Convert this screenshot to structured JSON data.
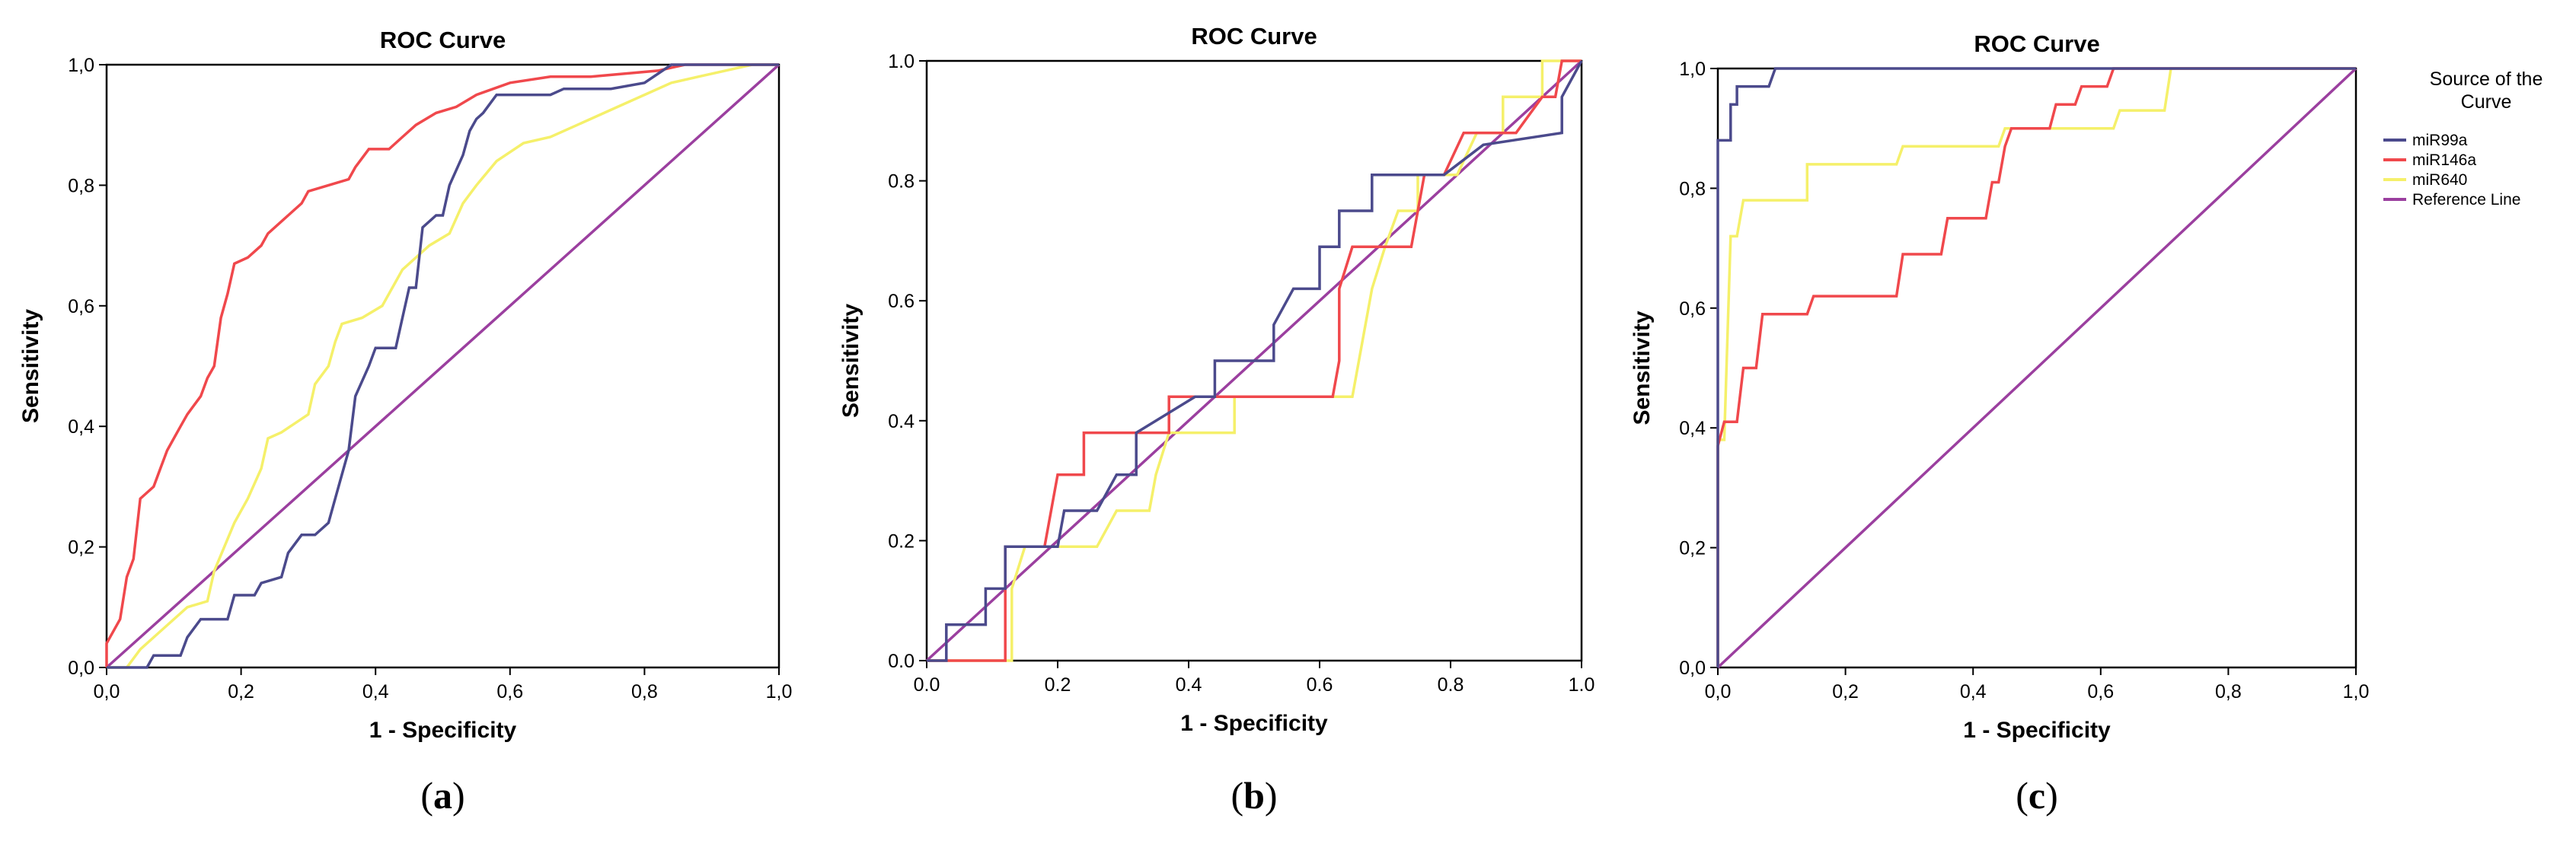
{
  "colors": {
    "miR99a": "#4b4a8c",
    "miR146a": "#f0484c",
    "miR640": "#f5f06a",
    "reference": "#9b3f9f",
    "axis": "#000000"
  },
  "legend": {
    "title_line1": "Source of the",
    "title_line2": "Curve",
    "entries": [
      "miR99a",
      "miR146a",
      "miR640",
      "Reference Line"
    ],
    "placement": "right of panel c"
  },
  "chart_data": [
    {
      "type": "line",
      "title": "ROC Curve",
      "xlabel": "1 - Specificity",
      "ylabel": "Sensitivity",
      "panel_label": "a",
      "xlim": [
        0,
        1
      ],
      "ylim": [
        0,
        1
      ],
      "x_ticks": [
        "0,0",
        "0,2",
        "0,4",
        "0,6",
        "0,8",
        "1,0"
      ],
      "y_ticks": [
        "0,0",
        "0,2",
        "0,4",
        "0,6",
        "0,8",
        "1,0"
      ],
      "grid": false,
      "series": [
        {
          "name": "miR99a",
          "points": [
            [
              0,
              0
            ],
            [
              0.06,
              0
            ],
            [
              0.07,
              0.02
            ],
            [
              0.11,
              0.02
            ],
            [
              0.12,
              0.05
            ],
            [
              0.14,
              0.08
            ],
            [
              0.18,
              0.08
            ],
            [
              0.19,
              0.12
            ],
            [
              0.22,
              0.12
            ],
            [
              0.23,
              0.14
            ],
            [
              0.26,
              0.15
            ],
            [
              0.27,
              0.19
            ],
            [
              0.29,
              0.22
            ],
            [
              0.31,
              0.22
            ],
            [
              0.33,
              0.24
            ],
            [
              0.34,
              0.28
            ],
            [
              0.35,
              0.32
            ],
            [
              0.36,
              0.36
            ],
            [
              0.37,
              0.45
            ],
            [
              0.39,
              0.5
            ],
            [
              0.4,
              0.53
            ],
            [
              0.43,
              0.53
            ],
            [
              0.44,
              0.58
            ],
            [
              0.45,
              0.63
            ],
            [
              0.46,
              0.63
            ],
            [
              0.47,
              0.73
            ],
            [
              0.49,
              0.75
            ],
            [
              0.5,
              0.75
            ],
            [
              0.51,
              0.8
            ],
            [
              0.53,
              0.85
            ],
            [
              0.54,
              0.89
            ],
            [
              0.55,
              0.91
            ],
            [
              0.56,
              0.92
            ],
            [
              0.58,
              0.95
            ],
            [
              0.62,
              0.95
            ],
            [
              0.66,
              0.95
            ],
            [
              0.68,
              0.96
            ],
            [
              0.75,
              0.96
            ],
            [
              0.8,
              0.97
            ],
            [
              0.84,
              1.0
            ],
            [
              1,
              1
            ]
          ]
        },
        {
          "name": "miR146a",
          "points": [
            [
              0,
              0
            ],
            [
              0,
              0.04
            ],
            [
              0.02,
              0.08
            ],
            [
              0.03,
              0.15
            ],
            [
              0.04,
              0.18
            ],
            [
              0.05,
              0.28
            ],
            [
              0.07,
              0.3
            ],
            [
              0.08,
              0.33
            ],
            [
              0.09,
              0.36
            ],
            [
              0.1,
              0.38
            ],
            [
              0.11,
              0.4
            ],
            [
              0.12,
              0.42
            ],
            [
              0.14,
              0.45
            ],
            [
              0.15,
              0.48
            ],
            [
              0.16,
              0.5
            ],
            [
              0.17,
              0.58
            ],
            [
              0.18,
              0.62
            ],
            [
              0.19,
              0.67
            ],
            [
              0.21,
              0.68
            ],
            [
              0.23,
              0.7
            ],
            [
              0.24,
              0.72
            ],
            [
              0.26,
              0.74
            ],
            [
              0.29,
              0.77
            ],
            [
              0.3,
              0.79
            ],
            [
              0.33,
              0.8
            ],
            [
              0.36,
              0.81
            ],
            [
              0.37,
              0.83
            ],
            [
              0.39,
              0.86
            ],
            [
              0.42,
              0.86
            ],
            [
              0.44,
              0.88
            ],
            [
              0.46,
              0.9
            ],
            [
              0.49,
              0.92
            ],
            [
              0.52,
              0.93
            ],
            [
              0.55,
              0.95
            ],
            [
              0.6,
              0.97
            ],
            [
              0.66,
              0.98
            ],
            [
              0.72,
              0.98
            ],
            [
              0.82,
              0.99
            ],
            [
              0.86,
              1.0
            ],
            [
              1,
              1
            ]
          ]
        },
        {
          "name": "miR640",
          "points": [
            [
              0,
              0
            ],
            [
              0.03,
              0
            ],
            [
              0.05,
              0.03
            ],
            [
              0.08,
              0.06
            ],
            [
              0.12,
              0.1
            ],
            [
              0.15,
              0.11
            ],
            [
              0.16,
              0.16
            ],
            [
              0.19,
              0.24
            ],
            [
              0.21,
              0.28
            ],
            [
              0.23,
              0.33
            ],
            [
              0.24,
              0.38
            ],
            [
              0.26,
              0.39
            ],
            [
              0.3,
              0.42
            ],
            [
              0.31,
              0.47
            ],
            [
              0.33,
              0.5
            ],
            [
              0.34,
              0.54
            ],
            [
              0.35,
              0.57
            ],
            [
              0.38,
              0.58
            ],
            [
              0.41,
              0.6
            ],
            [
              0.43,
              0.64
            ],
            [
              0.44,
              0.66
            ],
            [
              0.48,
              0.7
            ],
            [
              0.51,
              0.72
            ],
            [
              0.53,
              0.77
            ],
            [
              0.55,
              0.8
            ],
            [
              0.58,
              0.84
            ],
            [
              0.62,
              0.87
            ],
            [
              0.66,
              0.88
            ],
            [
              0.7,
              0.9
            ],
            [
              0.76,
              0.93
            ],
            [
              0.8,
              0.95
            ],
            [
              0.84,
              0.97
            ],
            [
              0.88,
              0.98
            ],
            [
              0.92,
              0.99
            ],
            [
              0.96,
              1.0
            ],
            [
              1,
              1
            ]
          ]
        },
        {
          "name": "Reference Line",
          "points": [
            [
              0,
              0
            ],
            [
              1,
              1
            ]
          ]
        }
      ]
    },
    {
      "type": "line",
      "title": "ROC Curve",
      "xlabel": "1 - Specificity",
      "ylabel": "Sensitivity",
      "panel_label": "b",
      "xlim": [
        0,
        1
      ],
      "ylim": [
        0,
        1
      ],
      "x_ticks": [
        "0.0",
        "0.2",
        "0.4",
        "0.6",
        "0.8",
        "1.0"
      ],
      "y_ticks": [
        "0.0",
        "0.2",
        "0.4",
        "0.6",
        "0.8",
        "1.0"
      ],
      "grid": false,
      "series": [
        {
          "name": "miR99a",
          "points": [
            [
              0,
              0
            ],
            [
              0.03,
              0
            ],
            [
              0.03,
              0.06
            ],
            [
              0.09,
              0.06
            ],
            [
              0.09,
              0.12
            ],
            [
              0.12,
              0.12
            ],
            [
              0.12,
              0.19
            ],
            [
              0.2,
              0.19
            ],
            [
              0.21,
              0.25
            ],
            [
              0.26,
              0.25
            ],
            [
              0.29,
              0.31
            ],
            [
              0.32,
              0.31
            ],
            [
              0.32,
              0.38
            ],
            [
              0.41,
              0.44
            ],
            [
              0.44,
              0.44
            ],
            [
              0.44,
              0.5
            ],
            [
              0.53,
              0.5
            ],
            [
              0.53,
              0.56
            ],
            [
              0.56,
              0.62
            ],
            [
              0.6,
              0.62
            ],
            [
              0.6,
              0.69
            ],
            [
              0.63,
              0.69
            ],
            [
              0.63,
              0.75
            ],
            [
              0.68,
              0.75
            ],
            [
              0.68,
              0.81
            ],
            [
              0.79,
              0.81
            ],
            [
              0.85,
              0.86
            ],
            [
              0.97,
              0.88
            ],
            [
              0.97,
              0.94
            ],
            [
              1,
              1
            ]
          ]
        },
        {
          "name": "miR146a",
          "points": [
            [
              0,
              0
            ],
            [
              0.12,
              0
            ],
            [
              0.12,
              0.19
            ],
            [
              0.18,
              0.19
            ],
            [
              0.2,
              0.31
            ],
            [
              0.24,
              0.31
            ],
            [
              0.24,
              0.38
            ],
            [
              0.37,
              0.38
            ],
            [
              0.37,
              0.44
            ],
            [
              0.62,
              0.44
            ],
            [
              0.63,
              0.5
            ],
            [
              0.63,
              0.62
            ],
            [
              0.65,
              0.69
            ],
            [
              0.74,
              0.69
            ],
            [
              0.76,
              0.81
            ],
            [
              0.79,
              0.81
            ],
            [
              0.82,
              0.88
            ],
            [
              0.9,
              0.88
            ],
            [
              0.94,
              0.94
            ],
            [
              0.96,
              0.94
            ],
            [
              0.97,
              1.0
            ],
            [
              1,
              1
            ]
          ]
        },
        {
          "name": "miR640",
          "points": [
            [
              0,
              0
            ],
            [
              0.13,
              0
            ],
            [
              0.13,
              0.12
            ],
            [
              0.15,
              0.19
            ],
            [
              0.26,
              0.19
            ],
            [
              0.29,
              0.25
            ],
            [
              0.34,
              0.25
            ],
            [
              0.35,
              0.31
            ],
            [
              0.37,
              0.38
            ],
            [
              0.47,
              0.38
            ],
            [
              0.47,
              0.44
            ],
            [
              0.65,
              0.44
            ],
            [
              0.66,
              0.5
            ],
            [
              0.68,
              0.62
            ],
            [
              0.7,
              0.69
            ],
            [
              0.72,
              0.75
            ],
            [
              0.75,
              0.75
            ],
            [
              0.75,
              0.81
            ],
            [
              0.81,
              0.81
            ],
            [
              0.84,
              0.88
            ],
            [
              0.88,
              0.88
            ],
            [
              0.88,
              0.94
            ],
            [
              0.94,
              0.94
            ],
            [
              0.94,
              1.0
            ],
            [
              1,
              1
            ]
          ]
        },
        {
          "name": "Reference Line",
          "points": [
            [
              0,
              0
            ],
            [
              1,
              1
            ]
          ]
        }
      ]
    },
    {
      "type": "line",
      "title": "ROC Curve",
      "xlabel": "1 - Specificity",
      "ylabel": "Sensitivity",
      "panel_label": "c",
      "xlim": [
        0,
        1
      ],
      "ylim": [
        0,
        1
      ],
      "x_ticks": [
        "0,0",
        "0,2",
        "0,4",
        "0,6",
        "0,8",
        "1,0"
      ],
      "y_ticks": [
        "0,0",
        "0,2",
        "0,4",
        "0,6",
        "0,8",
        "1,0"
      ],
      "grid": false,
      "series": [
        {
          "name": "miR99a",
          "points": [
            [
              0,
              0
            ],
            [
              0,
              0.88
            ],
            [
              0.02,
              0.88
            ],
            [
              0.02,
              0.94
            ],
            [
              0.03,
              0.94
            ],
            [
              0.03,
              0.97
            ],
            [
              0.05,
              0.97
            ],
            [
              0.08,
              0.97
            ],
            [
              0.09,
              1.0
            ],
            [
              1,
              1
            ]
          ]
        },
        {
          "name": "miR146a",
          "points": [
            [
              0,
              0
            ],
            [
              0,
              0.37
            ],
            [
              0.01,
              0.41
            ],
            [
              0.03,
              0.41
            ],
            [
              0.04,
              0.5
            ],
            [
              0.06,
              0.5
            ],
            [
              0.07,
              0.59
            ],
            [
              0.14,
              0.59
            ],
            [
              0.15,
              0.62
            ],
            [
              0.28,
              0.62
            ],
            [
              0.29,
              0.69
            ],
            [
              0.35,
              0.69
            ],
            [
              0.36,
              0.75
            ],
            [
              0.42,
              0.75
            ],
            [
              0.43,
              0.81
            ],
            [
              0.44,
              0.81
            ],
            [
              0.45,
              0.87
            ],
            [
              0.46,
              0.9
            ],
            [
              0.52,
              0.9
            ],
            [
              0.53,
              0.94
            ],
            [
              0.56,
              0.94
            ],
            [
              0.57,
              0.97
            ],
            [
              0.61,
              0.97
            ],
            [
              0.62,
              1.0
            ],
            [
              1,
              1
            ]
          ]
        },
        {
          "name": "miR640",
          "points": [
            [
              0,
              0
            ],
            [
              0,
              0.38
            ],
            [
              0.01,
              0.38
            ],
            [
              0.02,
              0.72
            ],
            [
              0.03,
              0.72
            ],
            [
              0.04,
              0.78
            ],
            [
              0.14,
              0.78
            ],
            [
              0.14,
              0.84
            ],
            [
              0.28,
              0.84
            ],
            [
              0.29,
              0.87
            ],
            [
              0.44,
              0.87
            ],
            [
              0.45,
              0.9
            ],
            [
              0.62,
              0.9
            ],
            [
              0.63,
              0.93
            ],
            [
              0.7,
              0.93
            ],
            [
              0.71,
              1.0
            ],
            [
              1,
              1
            ]
          ]
        },
        {
          "name": "Reference Line",
          "points": [
            [
              0,
              0
            ],
            [
              1,
              1
            ]
          ]
        }
      ]
    }
  ]
}
